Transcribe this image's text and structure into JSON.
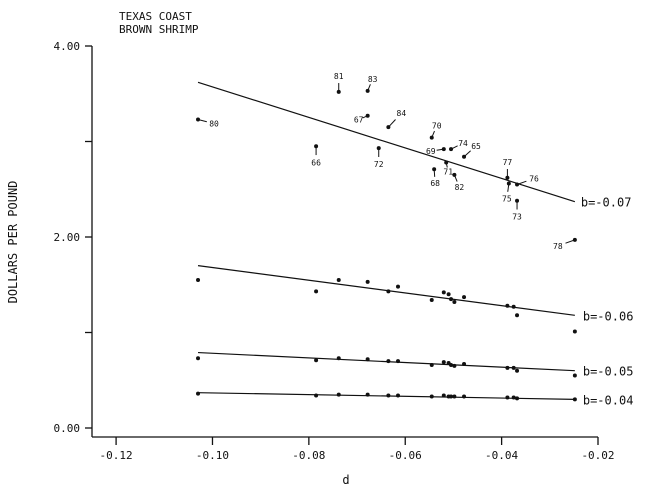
{
  "chart_data": {
    "type": "scatter",
    "title": [
      "TEXAS COAST",
      "BROWN SHRIMP"
    ],
    "xlabel": "d",
    "ylabel": "DOLLARS PER POUND",
    "xlim": [
      -0.125,
      -0.02
    ],
    "ylim": [
      0,
      4
    ],
    "x_ticks": [
      -0.12,
      -0.1,
      -0.08,
      -0.06,
      -0.04,
      -0.02
    ],
    "x_tick_labels": [
      "-0.12",
      "-0.10",
      "-0.08",
      "-0.06",
      "-0.04",
      "-0.02"
    ],
    "y_ticks": [
      0,
      1,
      2,
      3,
      4
    ],
    "y_tick_labels": [
      "0.00",
      "",
      "2.00",
      "",
      "4.00"
    ],
    "grid": false,
    "observed": {
      "points": [
        {
          "x": -0.103,
          "y": 3.23
        },
        {
          "x": -0.0785,
          "y": 2.95
        },
        {
          "x": -0.0738,
          "y": 3.52
        },
        {
          "x": -0.0678,
          "y": 3.27
        },
        {
          "x": -0.0678,
          "y": 3.53
        },
        {
          "x": -0.0635,
          "y": 3.15
        },
        {
          "x": -0.0655,
          "y": 2.93
        },
        {
          "x": -0.0545,
          "y": 3.04
        },
        {
          "x": -0.052,
          "y": 2.92
        },
        {
          "x": -0.054,
          "y": 2.71
        },
        {
          "x": -0.0515,
          "y": 2.78
        },
        {
          "x": -0.0505,
          "y": 2.92
        },
        {
          "x": -0.0498,
          "y": 2.65
        },
        {
          "x": -0.0478,
          "y": 2.84
        },
        {
          "x": -0.0388,
          "y": 2.62
        },
        {
          "x": -0.0385,
          "y": 2.56
        },
        {
          "x": -0.0368,
          "y": 2.55
        },
        {
          "x": -0.0368,
          "y": 2.38
        },
        {
          "x": -0.0248,
          "y": 1.97
        }
      ],
      "labels": [
        "80",
        "66",
        "81",
        "67",
        "83",
        "84",
        "72",
        "70",
        "69",
        "68",
        "71",
        "74",
        "82",
        "65",
        "77",
        "75",
        "76",
        "73",
        "78"
      ],
      "fit": {
        "x": [
          -0.103,
          -0.0248
        ],
        "y": [
          3.62,
          2.37
        ]
      },
      "b_label": "b=-0.07"
    },
    "series": [
      {
        "b_label": "b=-0.06",
        "x": [
          -0.103,
          -0.0785,
          -0.0738,
          -0.0678,
          -0.0635,
          -0.0615,
          -0.0545,
          -0.052,
          -0.051,
          -0.0505,
          -0.0498,
          -0.0478,
          -0.0388,
          -0.0375,
          -0.0368,
          -0.0248
        ],
        "y": [
          1.55,
          1.43,
          1.55,
          1.53,
          1.43,
          1.48,
          1.34,
          1.42,
          1.4,
          1.35,
          1.32,
          1.37,
          1.28,
          1.27,
          1.18,
          1.01
        ],
        "fit": {
          "x": [
            -0.103,
            -0.0248
          ],
          "y": [
            1.7,
            1.18
          ]
        }
      },
      {
        "b_label": "b=-0.05",
        "x": [
          -0.103,
          -0.0785,
          -0.0738,
          -0.0678,
          -0.0635,
          -0.0615,
          -0.0545,
          -0.052,
          -0.051,
          -0.0505,
          -0.0498,
          -0.0478,
          -0.0388,
          -0.0375,
          -0.0368,
          -0.0248
        ],
        "y": [
          0.73,
          0.71,
          0.73,
          0.72,
          0.7,
          0.7,
          0.66,
          0.69,
          0.68,
          0.66,
          0.65,
          0.67,
          0.63,
          0.63,
          0.6,
          0.55
        ],
        "fit": {
          "x": [
            -0.103,
            -0.0248
          ],
          "y": [
            0.79,
            0.6
          ]
        }
      },
      {
        "b_label": "b=-0.04",
        "x": [
          -0.103,
          -0.0785,
          -0.0738,
          -0.0678,
          -0.0635,
          -0.0615,
          -0.0545,
          -0.052,
          -0.051,
          -0.0505,
          -0.0498,
          -0.0478,
          -0.0388,
          -0.0375,
          -0.0368,
          -0.0248
        ],
        "y": [
          0.36,
          0.34,
          0.35,
          0.35,
          0.34,
          0.34,
          0.33,
          0.34,
          0.33,
          0.33,
          0.33,
          0.33,
          0.32,
          0.32,
          0.31,
          0.3
        ],
        "fit": {
          "x": [
            -0.103,
            -0.0248
          ],
          "y": [
            0.37,
            0.3
          ]
        }
      }
    ]
  }
}
